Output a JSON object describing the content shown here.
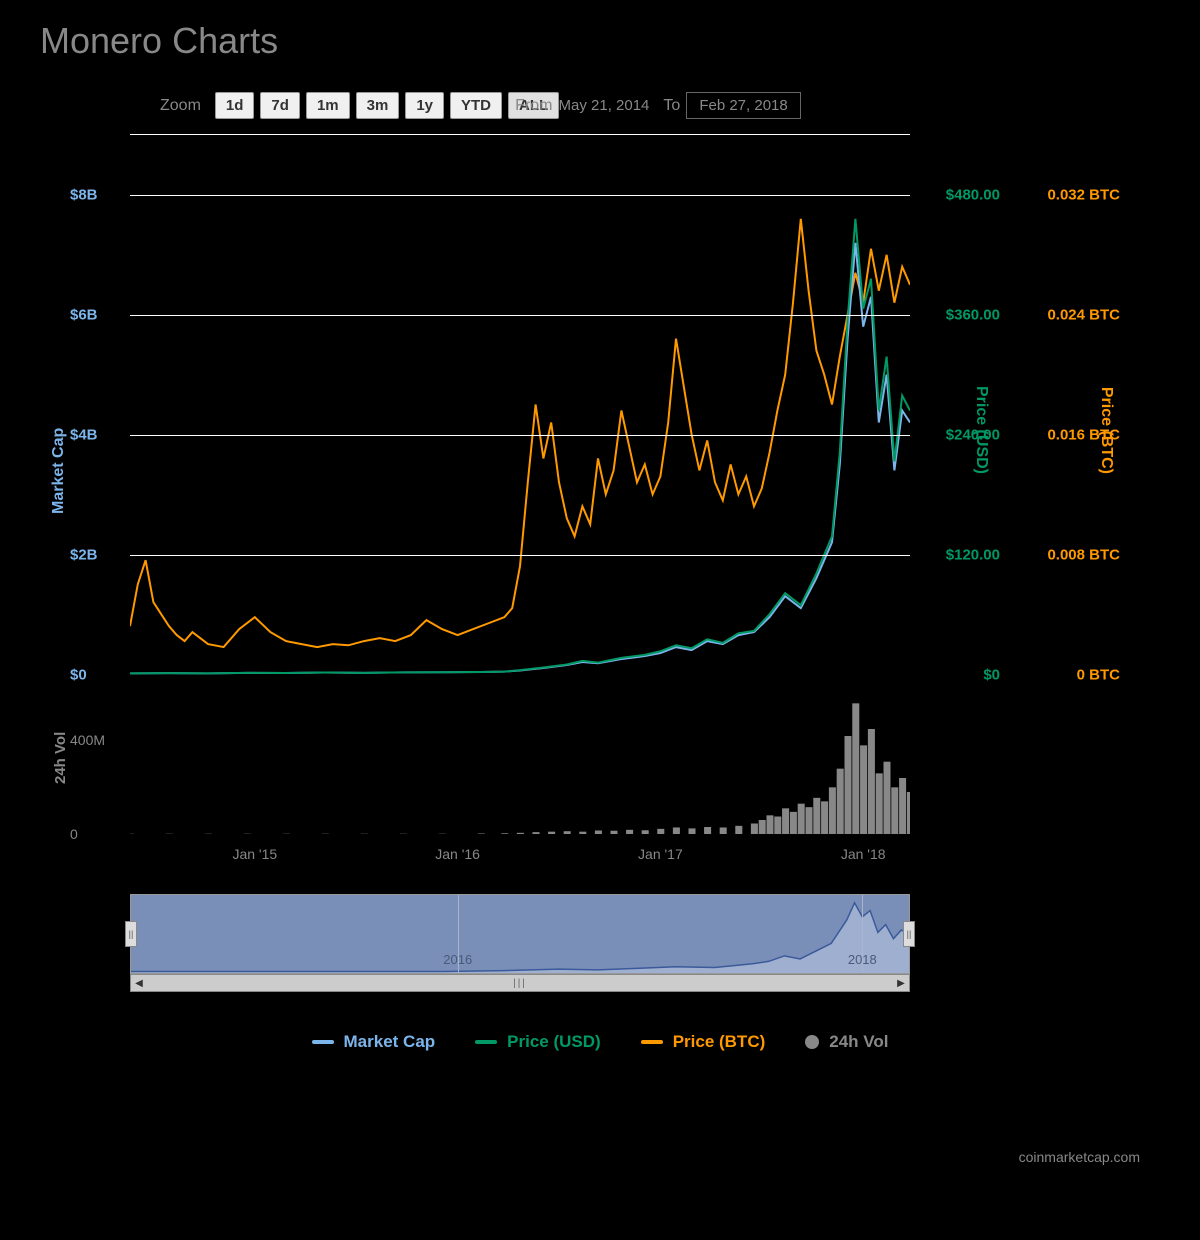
{
  "title": "Monero Charts",
  "controls": {
    "zoom_label": "Zoom",
    "buttons": [
      "1d",
      "7d",
      "1m",
      "3m",
      "1y",
      "YTD",
      "ALL"
    ],
    "active_index": 6,
    "from_label": "From",
    "from_date": "May 21, 2014",
    "to_label": "To",
    "to_date": "Feb 27, 2018"
  },
  "chart": {
    "background": "#000000",
    "grid_color": "#ffffff",
    "y_left": {
      "label": "Market Cap",
      "color": "#7cb5ec",
      "ticks": [
        "$0",
        "$2B",
        "$4B",
        "$6B",
        "$8B"
      ],
      "max": 8
    },
    "y_usd": {
      "label": "Price (USD)",
      "color": "#009966",
      "ticks": [
        "$0",
        "$120.00",
        "$240.00",
        "$360.00",
        "$480.00"
      ]
    },
    "y_btc": {
      "label": "Price (BTC)",
      "color": "#ff9900",
      "ticks": [
        "0 BTC",
        "0.008 BTC",
        "0.016 BTC",
        "0.024 BTC",
        "0.032 BTC"
      ]
    },
    "x_ticks": [
      {
        "pos": 16,
        "label": "Jan '15"
      },
      {
        "pos": 42,
        "label": "Jan '16"
      },
      {
        "pos": 68,
        "label": "Jan '17"
      },
      {
        "pos": 94,
        "label": "Jan '18"
      }
    ],
    "series": {
      "market_cap": {
        "color": "#7cb5ec",
        "width": 2,
        "points": [
          [
            0,
            0.01
          ],
          [
            5,
            0.015
          ],
          [
            10,
            0.012
          ],
          [
            15,
            0.02
          ],
          [
            20,
            0.018
          ],
          [
            25,
            0.025
          ],
          [
            30,
            0.02
          ],
          [
            35,
            0.028
          ],
          [
            40,
            0.03
          ],
          [
            45,
            0.035
          ],
          [
            48,
            0.04
          ],
          [
            50,
            0.06
          ],
          [
            53,
            0.1
          ],
          [
            56,
            0.15
          ],
          [
            58,
            0.2
          ],
          [
            60,
            0.18
          ],
          [
            63,
            0.25
          ],
          [
            66,
            0.3
          ],
          [
            68,
            0.35
          ],
          [
            70,
            0.45
          ],
          [
            72,
            0.4
          ],
          [
            74,
            0.55
          ],
          [
            76,
            0.5
          ],
          [
            78,
            0.65
          ],
          [
            80,
            0.7
          ],
          [
            82,
            0.95
          ],
          [
            84,
            1.3
          ],
          [
            86,
            1.1
          ],
          [
            88,
            1.6
          ],
          [
            90,
            2.2
          ],
          [
            91,
            3.5
          ],
          [
            92,
            5.6
          ],
          [
            93,
            7.2
          ],
          [
            94,
            5.8
          ],
          [
            95,
            6.3
          ],
          [
            96,
            4.2
          ],
          [
            97,
            5.0
          ],
          [
            98,
            3.4
          ],
          [
            99,
            4.4
          ],
          [
            100,
            4.2
          ]
        ]
      },
      "price_usd": {
        "color": "#009966",
        "width": 2,
        "points": [
          [
            0,
            0.01
          ],
          [
            5,
            0.015
          ],
          [
            10,
            0.012
          ],
          [
            15,
            0.02
          ],
          [
            20,
            0.018
          ],
          [
            25,
            0.025
          ],
          [
            30,
            0.02
          ],
          [
            35,
            0.028
          ],
          [
            40,
            0.03
          ],
          [
            45,
            0.035
          ],
          [
            48,
            0.04
          ],
          [
            50,
            0.065
          ],
          [
            53,
            0.11
          ],
          [
            56,
            0.16
          ],
          [
            58,
            0.22
          ],
          [
            60,
            0.19
          ],
          [
            63,
            0.27
          ],
          [
            66,
            0.32
          ],
          [
            68,
            0.38
          ],
          [
            70,
            0.48
          ],
          [
            72,
            0.43
          ],
          [
            74,
            0.58
          ],
          [
            76,
            0.52
          ],
          [
            78,
            0.68
          ],
          [
            80,
            0.72
          ],
          [
            82,
            1.0
          ],
          [
            84,
            1.35
          ],
          [
            86,
            1.15
          ],
          [
            88,
            1.68
          ],
          [
            90,
            2.3
          ],
          [
            91,
            3.7
          ],
          [
            92,
            5.9
          ],
          [
            93,
            7.6
          ],
          [
            94,
            6.1
          ],
          [
            95,
            6.6
          ],
          [
            96,
            4.4
          ],
          [
            97,
            5.3
          ],
          [
            98,
            3.55
          ],
          [
            99,
            4.65
          ],
          [
            100,
            4.4
          ]
        ]
      },
      "price_btc": {
        "color": "#ff9900",
        "width": 2,
        "points": [
          [
            0,
            0.8
          ],
          [
            1,
            1.5
          ],
          [
            2,
            1.9
          ],
          [
            3,
            1.2
          ],
          [
            4,
            1.0
          ],
          [
            5,
            0.8
          ],
          [
            6,
            0.65
          ],
          [
            7,
            0.55
          ],
          [
            8,
            0.7
          ],
          [
            9,
            0.6
          ],
          [
            10,
            0.5
          ],
          [
            12,
            0.45
          ],
          [
            14,
            0.75
          ],
          [
            16,
            0.95
          ],
          [
            18,
            0.7
          ],
          [
            20,
            0.55
          ],
          [
            22,
            0.5
          ],
          [
            24,
            0.45
          ],
          [
            26,
            0.5
          ],
          [
            28,
            0.48
          ],
          [
            30,
            0.55
          ],
          [
            32,
            0.6
          ],
          [
            34,
            0.55
          ],
          [
            36,
            0.65
          ],
          [
            38,
            0.9
          ],
          [
            40,
            0.75
          ],
          [
            42,
            0.65
          ],
          [
            44,
            0.75
          ],
          [
            46,
            0.85
          ],
          [
            48,
            0.95
          ],
          [
            49,
            1.1
          ],
          [
            50,
            1.8
          ],
          [
            51,
            3.2
          ],
          [
            52,
            4.5
          ],
          [
            53,
            3.6
          ],
          [
            54,
            4.2
          ],
          [
            55,
            3.2
          ],
          [
            56,
            2.6
          ],
          [
            57,
            2.3
          ],
          [
            58,
            2.8
          ],
          [
            59,
            2.5
          ],
          [
            60,
            3.6
          ],
          [
            61,
            3.0
          ],
          [
            62,
            3.4
          ],
          [
            63,
            4.4
          ],
          [
            64,
            3.8
          ],
          [
            65,
            3.2
          ],
          [
            66,
            3.5
          ],
          [
            67,
            3.0
          ],
          [
            68,
            3.3
          ],
          [
            69,
            4.2
          ],
          [
            70,
            5.6
          ],
          [
            71,
            4.8
          ],
          [
            72,
            4.0
          ],
          [
            73,
            3.4
          ],
          [
            74,
            3.9
          ],
          [
            75,
            3.2
          ],
          [
            76,
            2.9
          ],
          [
            77,
            3.5
          ],
          [
            78,
            3.0
          ],
          [
            79,
            3.3
          ],
          [
            80,
            2.8
          ],
          [
            81,
            3.1
          ],
          [
            82,
            3.7
          ],
          [
            83,
            4.4
          ],
          [
            84,
            5.0
          ],
          [
            85,
            6.2
          ],
          [
            86,
            7.6
          ],
          [
            87,
            6.4
          ],
          [
            88,
            5.4
          ],
          [
            89,
            5.0
          ],
          [
            90,
            4.5
          ],
          [
            91,
            5.3
          ],
          [
            92,
            6.0
          ],
          [
            93,
            6.7
          ],
          [
            94,
            6.2
          ],
          [
            95,
            7.1
          ],
          [
            96,
            6.4
          ],
          [
            97,
            7.0
          ],
          [
            98,
            6.2
          ],
          [
            99,
            6.8
          ],
          [
            100,
            6.5
          ]
        ]
      }
    }
  },
  "volume": {
    "label": "24h Vol",
    "color": "#888888",
    "ticks": [
      {
        "pos": 0.0,
        "label": "0"
      },
      {
        "pos": 0.67,
        "label": "400M"
      }
    ],
    "max": 600,
    "bars": [
      [
        0,
        1
      ],
      [
        5,
        1
      ],
      [
        10,
        1
      ],
      [
        15,
        1
      ],
      [
        20,
        1
      ],
      [
        25,
        1
      ],
      [
        30,
        1
      ],
      [
        35,
        1
      ],
      [
        40,
        1
      ],
      [
        45,
        2
      ],
      [
        48,
        3
      ],
      [
        50,
        5
      ],
      [
        52,
        8
      ],
      [
        54,
        10
      ],
      [
        56,
        12
      ],
      [
        58,
        10
      ],
      [
        60,
        15
      ],
      [
        62,
        14
      ],
      [
        64,
        18
      ],
      [
        66,
        16
      ],
      [
        68,
        22
      ],
      [
        70,
        28
      ],
      [
        72,
        24
      ],
      [
        74,
        30
      ],
      [
        76,
        28
      ],
      [
        78,
        35
      ],
      [
        80,
        45
      ],
      [
        81,
        60
      ],
      [
        82,
        80
      ],
      [
        83,
        75
      ],
      [
        84,
        110
      ],
      [
        85,
        95
      ],
      [
        86,
        130
      ],
      [
        87,
        115
      ],
      [
        88,
        155
      ],
      [
        89,
        140
      ],
      [
        90,
        200
      ],
      [
        91,
        280
      ],
      [
        92,
        420
      ],
      [
        93,
        560
      ],
      [
        94,
        380
      ],
      [
        95,
        450
      ],
      [
        96,
        260
      ],
      [
        97,
        310
      ],
      [
        98,
        200
      ],
      [
        99,
        240
      ],
      [
        100,
        180
      ]
    ]
  },
  "navigator": {
    "bg": "#7a8fb8",
    "line_color": "#3b5a9a",
    "ticks": [
      {
        "pos": 42,
        "label": "2016"
      },
      {
        "pos": 94,
        "label": "2018"
      }
    ],
    "points": [
      [
        0,
        2
      ],
      [
        10,
        2
      ],
      [
        20,
        2
      ],
      [
        30,
        2
      ],
      [
        40,
        2
      ],
      [
        48,
        3
      ],
      [
        55,
        5
      ],
      [
        60,
        4
      ],
      [
        65,
        6
      ],
      [
        70,
        8
      ],
      [
        75,
        7
      ],
      [
        78,
        10
      ],
      [
        80,
        12
      ],
      [
        82,
        15
      ],
      [
        84,
        22
      ],
      [
        86,
        18
      ],
      [
        88,
        28
      ],
      [
        90,
        38
      ],
      [
        92,
        68
      ],
      [
        93,
        90
      ],
      [
        94,
        72
      ],
      [
        95,
        80
      ],
      [
        96,
        52
      ],
      [
        97,
        62
      ],
      [
        98,
        44
      ],
      [
        99,
        55
      ],
      [
        100,
        52
      ]
    ]
  },
  "legend": {
    "items": [
      {
        "label": "Market Cap",
        "color": "#7cb5ec",
        "type": "line"
      },
      {
        "label": "Price (USD)",
        "color": "#009966",
        "type": "line"
      },
      {
        "label": "Price (BTC)",
        "color": "#ff9900",
        "type": "line"
      },
      {
        "label": "24h Vol",
        "color": "#888888",
        "type": "circle"
      }
    ]
  },
  "attribution": "coinmarketcap.com"
}
